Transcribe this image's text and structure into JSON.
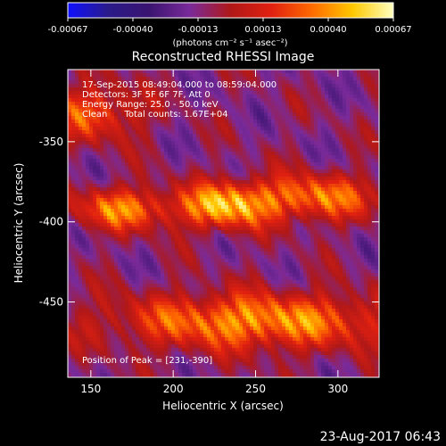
{
  "chart_data": {
    "type": "heatmap",
    "title": "Reconstructed RHESSI Image",
    "xlabel": "Heliocentric X (arcsec)",
    "ylabel": "Heliocentric Y (arcsec)",
    "xlim": [
      136,
      325
    ],
    "ylim": [
      -497,
      -305
    ],
    "xticks": [
      150,
      200,
      250,
      300
    ],
    "yticks": [
      -450,
      -400,
      -350
    ],
    "colorbar": {
      "range": [
        -0.00067,
        0.00067
      ],
      "ticks": [
        "-0.00067",
        "-0.00040",
        "-0.00013",
        "0.00013",
        "0.00040",
        "0.00067"
      ],
      "unit_label": "(photons cm⁻² s⁻¹ asec⁻²)",
      "colormap": [
        "#1010ff",
        "#2a1a8a",
        "#3a1470",
        "#7a2a9a",
        "#b01818",
        "#e02010",
        "#ff6a00",
        "#ffc800",
        "#ffffc0"
      ]
    },
    "annotations": [
      "17-Sep-2015 08:49:04.000 to 08:59:04.000",
      "Detectors: 3F 5F 6F 7F, Att 0",
      "Energy Range: 25.0 - 50.0 keV",
      "Clean      Total counts: 1.67E+04"
    ],
    "peak_label": "Position of Peak = [231,-390]",
    "sources": [
      {
        "x": 152,
        "y": -332,
        "sx": 20,
        "sy": 12,
        "amp": 0.00045
      },
      {
        "x": 170,
        "y": -392,
        "sx": 22,
        "sy": 9,
        "amp": 0.00055
      },
      {
        "x": 231,
        "y": -390,
        "sx": 18,
        "sy": 10,
        "amp": 0.00067
      },
      {
        "x": 285,
        "y": -385,
        "sx": 28,
        "sy": 10,
        "amp": 0.00055
      },
      {
        "x": 250,
        "y": -462,
        "sx": 60,
        "sy": 12,
        "amp": 0.00062
      }
    ]
  },
  "footer": {
    "datetime": "23-Aug-2017 06:43"
  }
}
